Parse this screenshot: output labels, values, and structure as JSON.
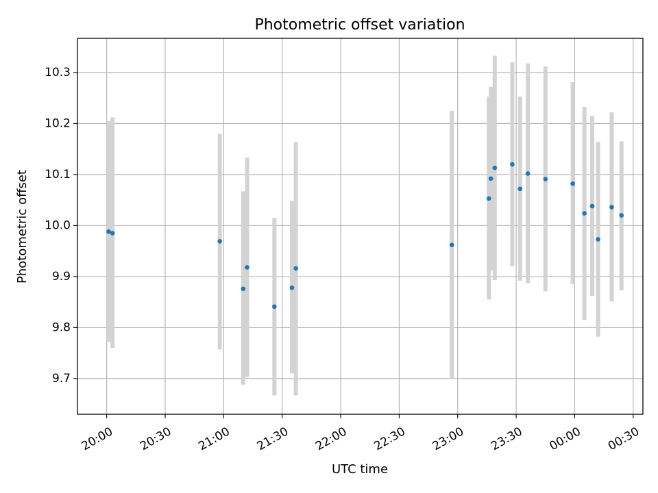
{
  "chart_data": {
    "type": "scatter",
    "title": "Photometric offset variation",
    "xlabel": "UTC time",
    "ylabel": "Photometric offset",
    "x_axis": {
      "kind": "time",
      "start": "19:45",
      "end": "00:35",
      "ticks": [
        "20:00",
        "20:30",
        "21:00",
        "21:30",
        "22:00",
        "22:30",
        "23:00",
        "23:30",
        "00:00",
        "00:30"
      ]
    },
    "ylim": [
      9.63,
      10.367
    ],
    "y_ticks": [
      9.7,
      9.8,
      9.9,
      10.0,
      10.1,
      10.2,
      10.3
    ],
    "y_tick_labels": [
      "9.7",
      "9.8",
      "9.9",
      "10.0",
      "10.1",
      "10.2",
      "10.3"
    ],
    "grid": true,
    "legend": "none",
    "colors": {
      "point": "#1f77b4",
      "errorbar": "#d3d3d3",
      "grid": "#b0b0b0",
      "axes": "#000000"
    },
    "points": [
      {
        "t": "20:01",
        "y": 9.988,
        "low": 9.772,
        "high": 10.205
      },
      {
        "t": "20:03",
        "y": 9.985,
        "low": 9.76,
        "high": 10.212
      },
      {
        "t": "20:58",
        "y": 9.969,
        "low": 9.757,
        "high": 10.18
      },
      {
        "t": "21:10",
        "y": 9.876,
        "low": 9.688,
        "high": 10.067
      },
      {
        "t": "21:12",
        "y": 9.918,
        "low": 9.703,
        "high": 10.133
      },
      {
        "t": "21:26",
        "y": 9.841,
        "low": 9.667,
        "high": 10.015
      },
      {
        "t": "21:35",
        "y": 9.878,
        "low": 9.71,
        "high": 10.048
      },
      {
        "t": "21:37",
        "y": 9.916,
        "low": 9.667,
        "high": 10.164
      },
      {
        "t": "22:57",
        "y": 9.962,
        "low": 9.7,
        "high": 10.225
      },
      {
        "t": "23:16",
        "y": 10.053,
        "low": 9.855,
        "high": 10.253
      },
      {
        "t": "23:17",
        "y": 10.092,
        "low": 9.912,
        "high": 10.272
      },
      {
        "t": "23:19",
        "y": 10.113,
        "low": 9.893,
        "high": 10.333
      },
      {
        "t": "23:28",
        "y": 10.12,
        "low": 9.92,
        "high": 10.32
      },
      {
        "t": "23:32",
        "y": 10.072,
        "low": 9.892,
        "high": 10.253
      },
      {
        "t": "23:36",
        "y": 10.102,
        "low": 9.887,
        "high": 10.318
      },
      {
        "t": "23:45",
        "y": 10.091,
        "low": 9.871,
        "high": 10.312
      },
      {
        "t": "23:59",
        "y": 10.082,
        "low": 9.885,
        "high": 10.281
      },
      {
        "t": "00:05",
        "y": 10.024,
        "low": 9.815,
        "high": 10.233
      },
      {
        "t": "00:09",
        "y": 10.038,
        "low": 9.862,
        "high": 10.215
      },
      {
        "t": "00:12",
        "y": 9.973,
        "low": 9.782,
        "high": 10.164
      },
      {
        "t": "00:19",
        "y": 10.036,
        "low": 9.851,
        "high": 10.222
      },
      {
        "t": "00:24",
        "y": 10.02,
        "low": 9.873,
        "high": 10.165
      }
    ]
  }
}
